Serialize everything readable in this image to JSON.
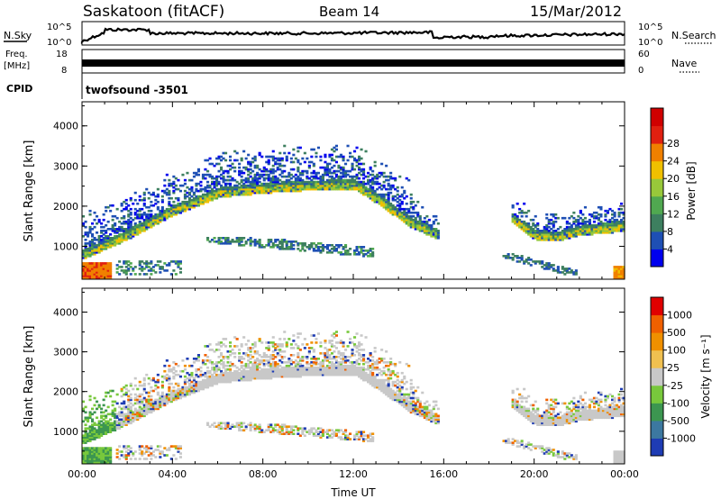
{
  "header": {
    "station": "Saskatoon (fitACF)",
    "beam": "Beam 14",
    "date": "15/Mar/2012"
  },
  "params": {
    "nsky_label": "N.Sky",
    "nsky_ticks": [
      "10^5",
      "10^0"
    ],
    "nsearch_label": "N.Search",
    "nsearch_ticks": [
      "10^5",
      "10^0"
    ],
    "freq_label": "Freq.",
    "freq_unit": "[MHz]",
    "freq_ticks": [
      "18",
      "8"
    ],
    "nave_label": "Nave",
    "nave_ticks": [
      "60",
      "0"
    ],
    "cpid_label": "CPID",
    "cpid_value": "twofsound -3501"
  },
  "chart_data": [
    {
      "type": "heatmap",
      "ylabel": "Slant Range [km]",
      "xlabel": "Time UT",
      "xlim": [
        0,
        24
      ],
      "ylim": [
        180,
        4600
      ],
      "x_ticks": [
        "00:00",
        "04:00",
        "08:00",
        "12:00",
        "16:00",
        "20:00",
        "00:00"
      ],
      "y_ticks": [
        "1000",
        "2000",
        "3000",
        "4000"
      ],
      "colorbar": {
        "label": "Power [dB]",
        "ticks": [
          "4",
          "8",
          "12",
          "16",
          "20",
          "24",
          "28"
        ],
        "colors": [
          "#0000ee",
          "#1e4fb4",
          "#3d7f5f",
          "#50a850",
          "#98c83a",
          "#f0c000",
          "#f08000",
          "#e02010",
          "#d00000"
        ]
      },
      "features": [
        {
          "name": "main-echo-band",
          "range_km_by_hour": [
            [
              0,
              900
            ],
            [
              2,
              1400
            ],
            [
              4,
              2000
            ],
            [
              6,
              2450
            ],
            [
              9,
              2600
            ],
            [
              12,
              2650
            ],
            [
              13,
              2300
            ],
            [
              14.5,
              1700
            ],
            [
              15.7,
              1400
            ]
          ]
        },
        {
          "name": "evening-echo-band",
          "range_km_by_hour": [
            [
              19,
              1800
            ],
            [
              20,
              1400
            ],
            [
              21,
              1350
            ],
            [
              22,
              1500
            ],
            [
              23,
              1550
            ],
            [
              24,
              1600
            ]
          ]
        }
      ]
    },
    {
      "type": "heatmap",
      "ylabel": "Slant Range [km]",
      "xlabel": "Time UT",
      "xlim": [
        0,
        24
      ],
      "ylim": [
        180,
        4600
      ],
      "x_ticks": [
        "00:00",
        "04:00",
        "08:00",
        "12:00",
        "16:00",
        "20:00",
        "00:00"
      ],
      "y_ticks": [
        "1000",
        "2000",
        "3000",
        "4000"
      ],
      "colorbar": {
        "label": "Velocity [m s⁻¹]",
        "ticks": [
          "1000",
          "500",
          "100",
          "25",
          "-25",
          "-100",
          "-500",
          "-1000"
        ],
        "colors": [
          "#1e3cb4",
          "#3c78a0",
          "#3c9650",
          "#78c83c",
          "#c8c8c8",
          "#f0c050",
          "#f09000",
          "#f06000",
          "#e00000"
        ]
      }
    }
  ]
}
